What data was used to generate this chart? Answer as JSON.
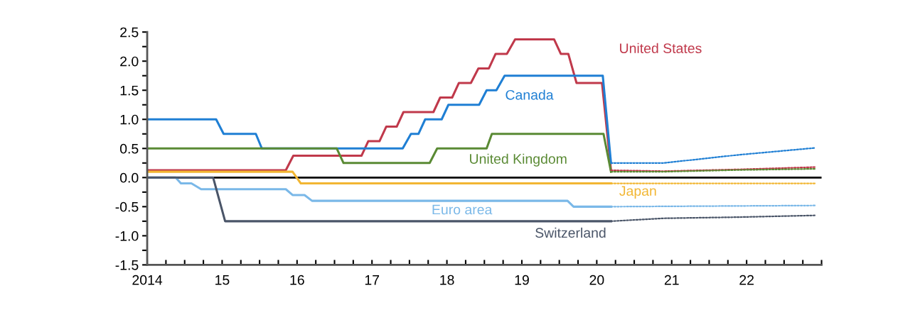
{
  "chart_data": {
    "type": "line",
    "xlim": [
      2014,
      2023
    ],
    "ylim": [
      -1.5,
      2.5
    ],
    "xticks": [
      {
        "value": 2014,
        "label": "2014"
      },
      {
        "value": 2014.25,
        "label": null
      },
      {
        "value": 2014.5,
        "label": null
      },
      {
        "value": 2014.75,
        "label": null
      },
      {
        "value": 2015,
        "label": "15"
      },
      {
        "value": 2015.25,
        "label": null
      },
      {
        "value": 2015.5,
        "label": null
      },
      {
        "value": 2015.75,
        "label": null
      },
      {
        "value": 2016,
        "label": "16"
      },
      {
        "value": 2016.25,
        "label": null
      },
      {
        "value": 2016.5,
        "label": null
      },
      {
        "value": 2016.75,
        "label": null
      },
      {
        "value": 2017,
        "label": "17"
      },
      {
        "value": 2017.25,
        "label": null
      },
      {
        "value": 2017.5,
        "label": null
      },
      {
        "value": 2017.75,
        "label": null
      },
      {
        "value": 2018,
        "label": "18"
      },
      {
        "value": 2018.25,
        "label": null
      },
      {
        "value": 2018.5,
        "label": null
      },
      {
        "value": 2018.75,
        "label": null
      },
      {
        "value": 2019,
        "label": "19"
      },
      {
        "value": 2019.25,
        "label": null
      },
      {
        "value": 2019.5,
        "label": null
      },
      {
        "value": 2019.75,
        "label": null
      },
      {
        "value": 2020,
        "label": "20"
      },
      {
        "value": 2020.25,
        "label": null
      },
      {
        "value": 2020.5,
        "label": null
      },
      {
        "value": 2020.75,
        "label": null
      },
      {
        "value": 2021,
        "label": "21"
      },
      {
        "value": 2021.25,
        "label": null
      },
      {
        "value": 2021.5,
        "label": null
      },
      {
        "value": 2021.75,
        "label": null
      },
      {
        "value": 2022,
        "label": "22"
      },
      {
        "value": 2022.25,
        "label": null
      },
      {
        "value": 2022.5,
        "label": null
      },
      {
        "value": 2022.75,
        "label": null
      },
      {
        "value": 2023,
        "label": null
      }
    ],
    "yticks": [
      {
        "value": -1.5,
        "label": "-1.5"
      },
      {
        "value": -1.25,
        "label": null
      },
      {
        "value": -1,
        "label": "-1.0"
      },
      {
        "value": -0.75,
        "label": null
      },
      {
        "value": -0.5,
        "label": "-0.5"
      },
      {
        "value": -0.25,
        "label": null
      },
      {
        "value": 0,
        "label": "0.0"
      },
      {
        "value": 0.25,
        "label": null
      },
      {
        "value": 0.5,
        "label": "0.5"
      },
      {
        "value": 0.75,
        "label": null
      },
      {
        "value": 1,
        "label": "1.0"
      },
      {
        "value": 1.25,
        "label": null
      },
      {
        "value": 1.5,
        "label": "1.5"
      },
      {
        "value": 1.75,
        "label": null
      },
      {
        "value": 2,
        "label": "2.0"
      },
      {
        "value": 2.25,
        "label": null
      },
      {
        "value": 2.5,
        "label": "2.5"
      }
    ],
    "grid": false,
    "ref_lines": [
      {
        "axis": "y",
        "value": 0,
        "color": "#000000"
      }
    ],
    "series": [
      {
        "name": "United States",
        "color": "#c0394b",
        "line_style": "solid",
        "x": [
          2014,
          2015.85,
          2015.95,
          2016.86,
          2016.95,
          2017.1,
          2017.19,
          2017.33,
          2017.42,
          2017.82,
          2017.91,
          2018.07,
          2018.16,
          2018.32,
          2018.42,
          2018.56,
          2018.65,
          2018.8,
          2018.91,
          2019.43,
          2019.52,
          2019.62,
          2019.73,
          2020.07,
          2020.19
        ],
        "values": [
          0.125,
          0.125,
          0.375,
          0.375,
          0.625,
          0.625,
          0.875,
          0.875,
          1.125,
          1.125,
          1.375,
          1.375,
          1.625,
          1.625,
          1.875,
          1.875,
          2.125,
          2.125,
          2.375,
          2.375,
          2.125,
          2.125,
          1.625,
          1.625,
          0.125
        ]
      },
      {
        "name": "Canada",
        "color": "#1f7fd4",
        "line_style": "solid",
        "x": [
          2014,
          2014.92,
          2015.02,
          2015.45,
          2015.53,
          2017.41,
          2017.52,
          2017.62,
          2017.71,
          2017.93,
          2018.02,
          2018.43,
          2018.53,
          2018.66,
          2018.77,
          2020.08,
          2020.19
        ],
        "values": [
          1.0,
          1.0,
          0.75,
          0.75,
          0.5,
          0.5,
          0.75,
          0.75,
          1.0,
          1.0,
          1.25,
          1.25,
          1.5,
          1.5,
          1.75,
          1.75,
          0.25
        ]
      },
      {
        "name": "United Kingdom",
        "color": "#5a8a34",
        "line_style": "solid",
        "x": [
          2014,
          2016.53,
          2016.62,
          2017.77,
          2017.87,
          2018.53,
          2018.6,
          2020.09,
          2020.19
        ],
        "values": [
          0.5,
          0.5,
          0.25,
          0.25,
          0.5,
          0.5,
          0.75,
          0.75,
          0.1
        ]
      },
      {
        "name": "Japan",
        "color": "#f2b632",
        "line_style": "solid",
        "x": [
          2014,
          2015.94,
          2016.05,
          2020.19
        ],
        "values": [
          0.1,
          0.1,
          -0.1,
          -0.1
        ]
      },
      {
        "name": "Euro area",
        "color": "#7ab8e8",
        "line_style": "solid",
        "x": [
          2014,
          2014.38,
          2014.45,
          2014.59,
          2014.72,
          2015.85,
          2015.94,
          2016.1,
          2016.2,
          2019.61,
          2019.69,
          2020.19
        ],
        "values": [
          0,
          0,
          -0.1,
          -0.1,
          -0.2,
          -0.2,
          -0.3,
          -0.3,
          -0.4,
          -0.4,
          -0.5,
          -0.5
        ]
      },
      {
        "name": "Switzerland",
        "color": "#4a5568",
        "line_style": "solid",
        "x": [
          2014,
          2014.88,
          2015.04,
          2020.19
        ],
        "values": [
          0,
          0,
          -0.75,
          -0.75
        ]
      },
      {
        "color": "#c0394b",
        "line_style": "dotted",
        "x": [
          2020.19,
          2020.89,
          2021.89,
          2022.92
        ],
        "values": [
          0.125,
          0.11,
          0.14,
          0.18
        ]
      },
      {
        "color": "#1f7fd4",
        "line_style": "dotted",
        "x": [
          2020.19,
          2020.89,
          2021.89,
          2022.92
        ],
        "values": [
          0.25,
          0.25,
          0.39,
          0.51
        ]
      },
      {
        "color": "#5a8a34",
        "line_style": "dotted",
        "x": [
          2020.19,
          2020.89,
          2021.89,
          2022.92
        ],
        "values": [
          0.1,
          0.1,
          0.13,
          0.15
        ]
      },
      {
        "color": "#f2b632",
        "line_style": "dotted",
        "x": [
          2020.19,
          2022.92
        ],
        "values": [
          -0.1,
          -0.1
        ]
      },
      {
        "color": "#7ab8e8",
        "line_style": "dotted",
        "x": [
          2020.19,
          2022.92
        ],
        "values": [
          -0.5,
          -0.48
        ]
      },
      {
        "color": "#4a5568",
        "line_style": "dotted",
        "x": [
          2020.19,
          2020.89,
          2021.89,
          2022.92
        ],
        "values": [
          -0.75,
          -0.7,
          -0.68,
          -0.65
        ]
      }
    ]
  }
}
